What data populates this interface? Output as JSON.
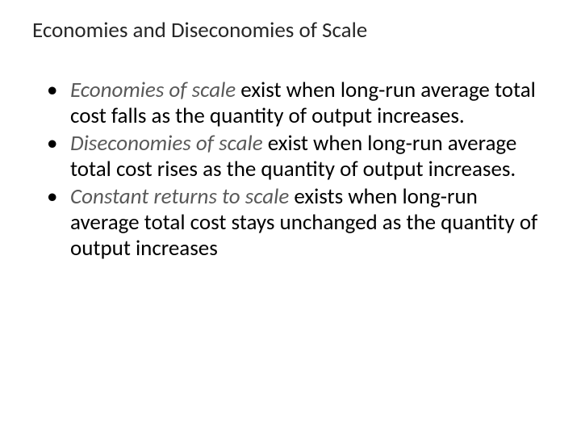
{
  "slide": {
    "title": "Economies and Diseconomies of Scale",
    "bullets": [
      {
        "term": "Economies of scale",
        "rest": " exist when long-run average total cost falls as the quantity of output increases."
      },
      {
        "term": "Diseconomies of scale",
        "rest": " exist when long-run average total cost rises as the quantity of output increases."
      },
      {
        "term": "Constant returns to scale",
        "rest": " exists when long-run average total cost stays unchanged as the quantity of output increases"
      }
    ]
  },
  "style": {
    "background_color": "#ffffff",
    "title_color": "#262626",
    "body_color": "#000000",
    "term_color": "#595959",
    "title_fontsize": 27,
    "body_fontsize": 27,
    "font_family": "Calibri"
  }
}
